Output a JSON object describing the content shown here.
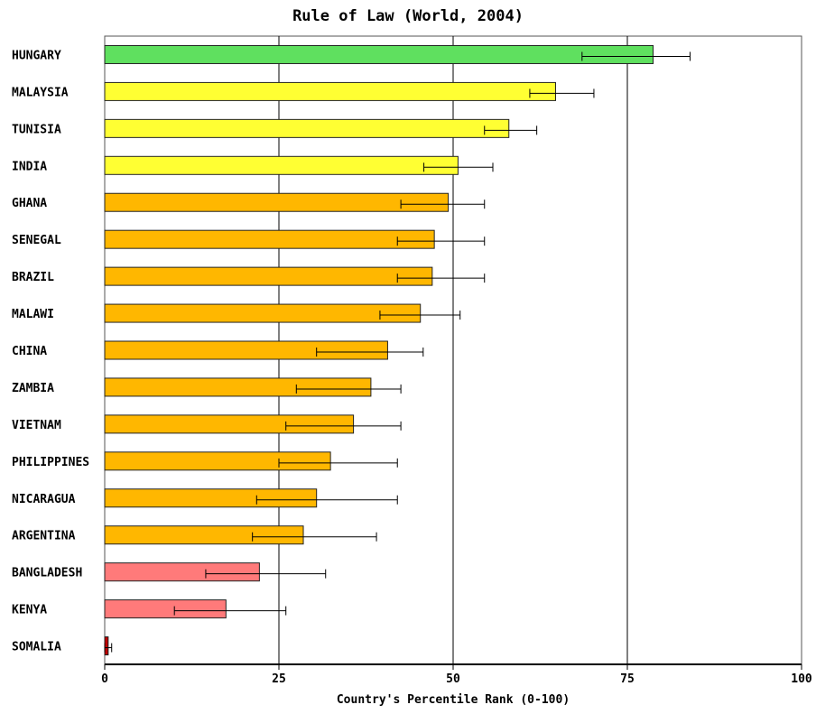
{
  "chart_data": {
    "type": "bar",
    "orientation": "horizontal",
    "title": "Rule of Law (World, 2004)",
    "xlabel": "Country's Percentile Rank (0-100)",
    "ylabel": "",
    "xlim": [
      0,
      100
    ],
    "xticks": [
      0,
      25,
      50,
      75,
      100
    ],
    "grid": "vertical",
    "categories": [
      "HUNGARY",
      "MALAYSIA",
      "TUNISIA",
      "INDIA",
      "GHANA",
      "SENEGAL",
      "BRAZIL",
      "MALAWI",
      "CHINA",
      "ZAMBIA",
      "VIETNAM",
      "PHILIPPINES",
      "NICARAGUA",
      "ARGENTINA",
      "BANGLADESH",
      "KENYA",
      "SOMALIA"
    ],
    "values": [
      78.7,
      64.7,
      58.0,
      50.7,
      49.3,
      47.3,
      47.0,
      45.3,
      40.6,
      38.2,
      35.7,
      32.4,
      30.4,
      28.5,
      22.2,
      17.4,
      0.5
    ],
    "error_low": [
      68.5,
      61.0,
      54.5,
      45.8,
      42.5,
      42.0,
      42.0,
      39.5,
      30.4,
      27.5,
      26.0,
      25.0,
      21.8,
      21.2,
      14.5,
      10.0,
      0.0
    ],
    "error_high": [
      84.0,
      70.2,
      62.0,
      55.7,
      54.5,
      54.5,
      54.5,
      51.0,
      45.7,
      42.5,
      42.5,
      42.0,
      42.0,
      39.0,
      31.7,
      26.0,
      1.0
    ],
    "colors": [
      "#5fe05f",
      "#ffff33",
      "#ffff33",
      "#ffff33",
      "#ffb700",
      "#ffb700",
      "#ffb700",
      "#ffb700",
      "#ffb700",
      "#ffb700",
      "#ffb700",
      "#ffb700",
      "#ffb700",
      "#ffb700",
      "#ff7a7a",
      "#ff7a7a",
      "#c00000"
    ]
  }
}
